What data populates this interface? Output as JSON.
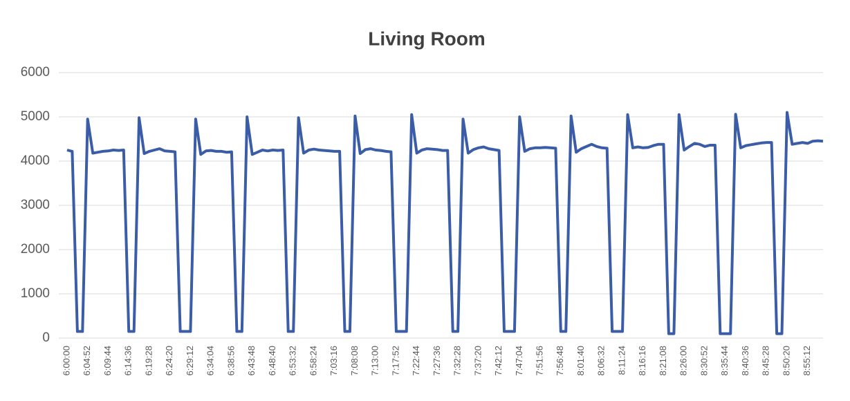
{
  "chart_data": {
    "type": "line",
    "title": "Living Room",
    "categories": [
      "6:00:00",
      null,
      null,
      null,
      "6:04:52",
      null,
      null,
      null,
      "6:09:44",
      null,
      null,
      null,
      "6:14:36",
      null,
      null,
      null,
      "6:19:28",
      null,
      null,
      null,
      "6:24:20",
      null,
      null,
      null,
      "6:29:12",
      null,
      null,
      null,
      "6:34:04",
      null,
      null,
      null,
      "6:38:56",
      null,
      null,
      null,
      "6:43:48",
      null,
      null,
      null,
      "6:48:40",
      null,
      null,
      null,
      "6:53:32",
      null,
      null,
      null,
      "6:58:24",
      null,
      null,
      null,
      "7:03:16",
      null,
      null,
      null,
      "7:08:08",
      null,
      null,
      null,
      "7:13:00",
      null,
      null,
      null,
      "7:17:52",
      null,
      null,
      null,
      "7:22:44",
      null,
      null,
      null,
      "7:27:36",
      null,
      null,
      null,
      "7:32:28",
      null,
      null,
      null,
      "7:37:20",
      null,
      null,
      null,
      "7:42:12",
      null,
      null,
      null,
      "7:47:04",
      null,
      null,
      null,
      "7:51:56",
      null,
      null,
      null,
      "7:56:48",
      null,
      null,
      null,
      "8:01:40",
      null,
      null,
      null,
      "8:06:32",
      null,
      null,
      null,
      "8:11:24",
      null,
      null,
      null,
      "8:16:16",
      null,
      null,
      null,
      "8:21:08",
      null,
      null,
      null,
      "8:26:00",
      null,
      null,
      null,
      "8:30:52",
      null,
      null,
      null,
      "8:35:44",
      null,
      null,
      null,
      "8:40:36",
      null,
      null,
      null,
      "8:45:28",
      null,
      null,
      null,
      "8:50:20",
      null,
      null,
      null,
      "8:55:12",
      null,
      null,
      null
    ],
    "values": [
      4250,
      4220,
      150,
      150,
      4950,
      4180,
      4200,
      4220,
      4230,
      4250,
      4240,
      4250,
      150,
      150,
      4980,
      4170,
      4220,
      4250,
      4280,
      4230,
      4220,
      4210,
      150,
      150,
      150,
      4950,
      4150,
      4230,
      4240,
      4220,
      4220,
      4200,
      4210,
      150,
      150,
      5000,
      4150,
      4200,
      4250,
      4230,
      4250,
      4240,
      4250,
      150,
      150,
      4980,
      4180,
      4250,
      4270,
      4250,
      4240,
      4230,
      4220,
      4220,
      150,
      150,
      5020,
      4170,
      4260,
      4280,
      4250,
      4240,
      4220,
      4210,
      150,
      150,
      150,
      5050,
      4180,
      4250,
      4280,
      4270,
      4260,
      4240,
      4240,
      150,
      150,
      4950,
      4180,
      4260,
      4300,
      4320,
      4280,
      4260,
      4240,
      150,
      150,
      150,
      5000,
      4220,
      4280,
      4300,
      4300,
      4310,
      4300,
      4290,
      150,
      150,
      5020,
      4200,
      4280,
      4330,
      4380,
      4330,
      4300,
      4290,
      150,
      150,
      150,
      5050,
      4300,
      4320,
      4300,
      4310,
      4350,
      4380,
      4380,
      100,
      100,
      5050,
      4250,
      4330,
      4400,
      4380,
      4330,
      4360,
      4360,
      100,
      100,
      100,
      5060,
      4300,
      4350,
      4370,
      4390,
      4410,
      4420,
      4420,
      100,
      100,
      5100,
      4380,
      4400,
      4420,
      4400,
      4450,
      4460,
      4450
    ],
    "color": "#3b5ca6",
    "ylim": [
      0,
      6000
    ],
    "yticks": [
      0,
      1000,
      2000,
      3000,
      4000,
      5000,
      6000
    ],
    "grid": true
  }
}
